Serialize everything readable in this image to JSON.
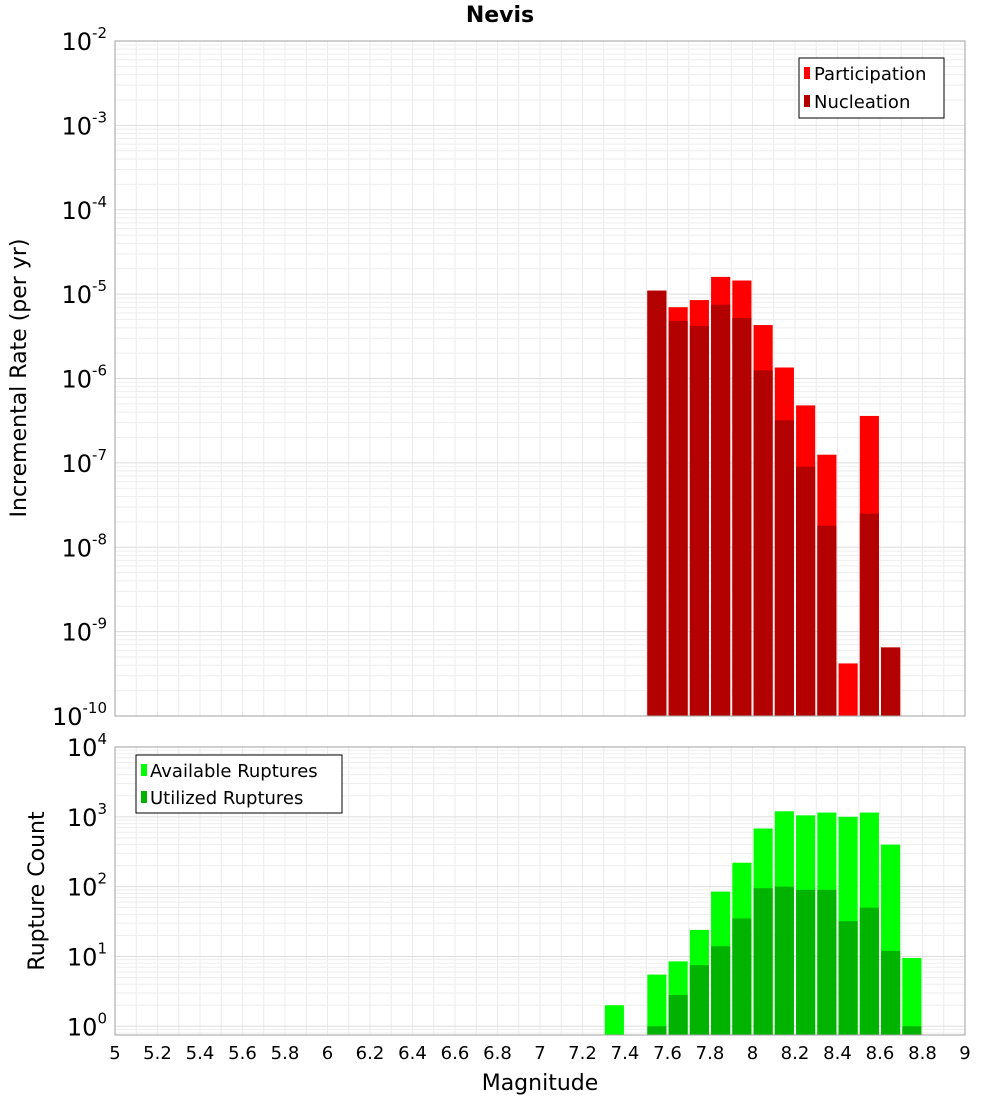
{
  "chart_data": [
    {
      "type": "bar",
      "panel": "top",
      "title": "Nevis",
      "ylabel": "Incremental Rate (per yr)",
      "xlabel": "Magnitude",
      "xlim": [
        5,
        9
      ],
      "ylim": [
        1e-10,
        0.01
      ],
      "yscale": "log",
      "grid": true,
      "legend_position": "top-right",
      "yticks": [
        {
          "base": "10",
          "exp": "-2"
        },
        {
          "base": "10",
          "exp": "-3"
        },
        {
          "base": "10",
          "exp": "-4"
        },
        {
          "base": "10",
          "exp": "-5"
        },
        {
          "base": "10",
          "exp": "-6"
        },
        {
          "base": "10",
          "exp": "-7"
        },
        {
          "base": "10",
          "exp": "-8"
        },
        {
          "base": "10",
          "exp": "-9"
        },
        {
          "base": "10",
          "exp": "-10"
        }
      ],
      "x": [
        7.55,
        7.65,
        7.75,
        7.85,
        7.95,
        8.05,
        8.15,
        8.25,
        8.35,
        8.45,
        8.55,
        8.65
      ],
      "series": [
        {
          "name": "Participation",
          "color": "#ff0000",
          "values": [
            1.1e-05,
            7e-06,
            8.5e-06,
            1.6e-05,
            1.45e-05,
            4.3e-06,
            1.35e-06,
            4.8e-07,
            1.25e-07,
            4.2e-10,
            3.6e-07,
            6.5e-10
          ]
        },
        {
          "name": "Nucleation",
          "color": "#b30000",
          "values": [
            1.1e-05,
            4.8e-06,
            4.2e-06,
            7.5e-06,
            5.2e-06,
            1.25e-06,
            3.2e-07,
            9e-08,
            1.8e-08,
            null,
            2.5e-08,
            6.5e-10
          ]
        }
      ]
    },
    {
      "type": "bar",
      "panel": "bottom",
      "ylabel": "Rupture Count",
      "xlabel": "Magnitude",
      "xlim": [
        5,
        9
      ],
      "ylim": [
        0.75,
        10000
      ],
      "yscale": "log",
      "grid": true,
      "legend_position": "top-left",
      "yticks": [
        {
          "base": "10",
          "exp": "4"
        },
        {
          "base": "10",
          "exp": "3"
        },
        {
          "base": "10",
          "exp": "2"
        },
        {
          "base": "10",
          "exp": "1"
        },
        {
          "base": "10",
          "exp": "0"
        }
      ],
      "xticks": [
        "5",
        "5.2",
        "5.4",
        "5.6",
        "5.8",
        "6",
        "6.2",
        "6.4",
        "6.6",
        "6.8",
        "7",
        "7.2",
        "7.4",
        "7.6",
        "7.8",
        "8",
        "8.2",
        "8.4",
        "8.6",
        "8.8",
        "9"
      ],
      "x": [
        7.35,
        7.55,
        7.65,
        7.75,
        7.85,
        7.95,
        8.05,
        8.15,
        8.25,
        8.35,
        8.45,
        8.55,
        8.65,
        8.75
      ],
      "series": [
        {
          "name": "Available Ruptures",
          "color": "#00ff00",
          "values": [
            2,
            5.5,
            8.5,
            24,
            85,
            220,
            680,
            1200,
            1050,
            1150,
            1000,
            1150,
            400,
            9.5
          ]
        },
        {
          "name": "Utilized Ruptures",
          "color": "#00b300",
          "values": [
            null,
            1,
            2.8,
            7.5,
            14,
            35,
            95,
            100,
            90,
            90,
            32,
            50,
            12,
            1
          ]
        }
      ]
    }
  ]
}
